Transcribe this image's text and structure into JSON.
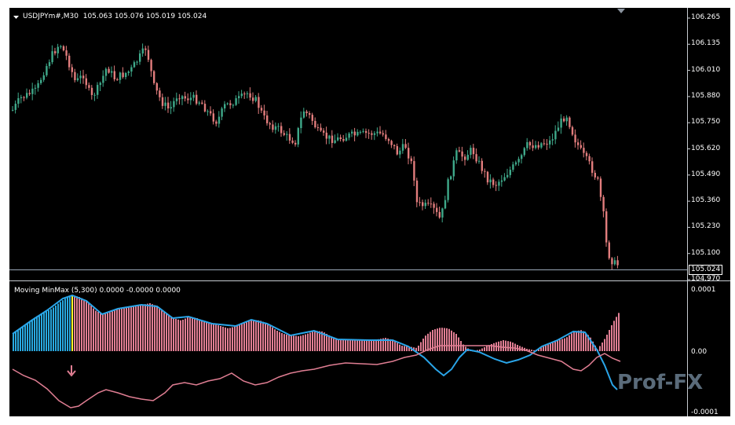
{
  "main_chart": {
    "symbol_label": "USDJPYm#,M30",
    "ohlc_label": "105.063 105.076 105.019 105.024",
    "price_levels": [
      "106.265",
      "106.135",
      "106.010",
      "105.880",
      "105.750",
      "105.620",
      "105.490",
      "105.360",
      "105.230",
      "105.100",
      "104.970"
    ],
    "current_price": "105.024",
    "colors": {
      "bull": "#3fa98a",
      "bear": "#e27d7d",
      "background": "#000000",
      "grid_line": "#9aa7b8"
    }
  },
  "indicator": {
    "label": "Moving MinMax (5,300) 0.0000 -0.0000 0.0000",
    "levels": [
      "0.0001",
      "0.00",
      "-0.0001"
    ],
    "colors": {
      "up_hist": "#29a9e0",
      "down_hist": "#e07e93",
      "signal": "#ffff33",
      "blue_line": "#2aa5e8",
      "pink_line": "#e07e93"
    }
  },
  "watermark": {
    "text": "Prof-FX"
  },
  "icons": {
    "dropdown": "triangle-down-icon",
    "shift_marker": "triangle-down-icon",
    "arrow_marker": "arrow-down-icon"
  }
}
